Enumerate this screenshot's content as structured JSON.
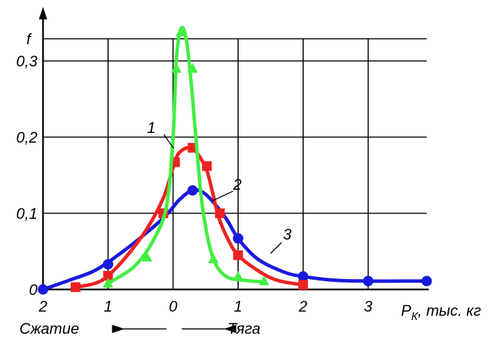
{
  "chart_data": {
    "type": "line",
    "ylabel": "f",
    "xlabel": "P",
    "xlabel_sub": "К",
    "xlabel_units": ", тыс. кг",
    "direction_left": "Сжатие",
    "direction_right": "Тяга",
    "xlim": [
      -2,
      3.9
    ],
    "ylim": [
      0,
      0.36
    ],
    "grid": true,
    "x_ticks": [
      {
        "value": -2,
        "label": "2"
      },
      {
        "value": -1,
        "label": "1"
      },
      {
        "value": 0,
        "label": "0"
      },
      {
        "value": 1,
        "label": "1"
      },
      {
        "value": 2,
        "label": "2"
      },
      {
        "value": 3,
        "label": "3"
      }
    ],
    "y_ticks": [
      {
        "value": 0,
        "label": "0"
      },
      {
        "value": 0.1,
        "label": "0,1"
      },
      {
        "value": 0.2,
        "label": "0,2"
      },
      {
        "value": 0.3,
        "label": "0,3"
      }
    ],
    "series": [
      {
        "name": "1",
        "color": "#44ee44",
        "marker": "triangle",
        "curve": [
          [
            -1.0,
            0.008
          ],
          [
            -0.6,
            0.03
          ],
          [
            -0.3,
            0.065
          ],
          [
            -0.1,
            0.11
          ],
          [
            0.0,
            0.2
          ],
          [
            0.05,
            0.3
          ],
          [
            0.12,
            0.342
          ],
          [
            0.2,
            0.33
          ],
          [
            0.28,
            0.27
          ],
          [
            0.35,
            0.2
          ],
          [
            0.45,
            0.11
          ],
          [
            0.6,
            0.045
          ],
          [
            0.8,
            0.018
          ],
          [
            1.1,
            0.012
          ],
          [
            1.4,
            0.01
          ]
        ],
        "markers": [
          [
            -1.0,
            0.008
          ],
          [
            -0.4,
            0.042
          ],
          [
            0.05,
            0.29
          ],
          [
            0.12,
            0.338
          ],
          [
            0.3,
            0.29
          ],
          [
            0.62,
            0.04
          ],
          [
            1.0,
            0.017
          ],
          [
            1.4,
            0.011
          ]
        ]
      },
      {
        "name": "2",
        "color": "#ee2222",
        "marker": "square",
        "curve": [
          [
            -1.5,
            0.003
          ],
          [
            -1.2,
            0.008
          ],
          [
            -1.0,
            0.018
          ],
          [
            -0.7,
            0.045
          ],
          [
            -0.4,
            0.08
          ],
          [
            -0.15,
            0.12
          ],
          [
            0.0,
            0.16
          ],
          [
            0.1,
            0.18
          ],
          [
            0.3,
            0.185
          ],
          [
            0.5,
            0.16
          ],
          [
            0.6,
            0.13
          ],
          [
            0.7,
            0.095
          ],
          [
            0.85,
            0.065
          ],
          [
            1.0,
            0.045
          ],
          [
            1.3,
            0.025
          ],
          [
            1.6,
            0.012
          ],
          [
            2.0,
            0.006
          ]
        ],
        "markers": [
          [
            -1.5,
            0.003
          ],
          [
            -1.0,
            0.018
          ],
          [
            -0.15,
            0.1
          ],
          [
            0.03,
            0.167
          ],
          [
            0.3,
            0.186
          ],
          [
            0.52,
            0.162
          ],
          [
            0.72,
            0.1
          ],
          [
            1.0,
            0.045
          ],
          [
            2.0,
            0.006
          ]
        ]
      },
      {
        "name": "3",
        "color": "#1a1adc",
        "marker": "circle",
        "curve": [
          [
            -2.0,
            0.0
          ],
          [
            -1.6,
            0.012
          ],
          [
            -1.2,
            0.025
          ],
          [
            -0.8,
            0.048
          ],
          [
            -0.4,
            0.075
          ],
          [
            -0.1,
            0.098
          ],
          [
            0.1,
            0.118
          ],
          [
            0.3,
            0.13
          ],
          [
            0.5,
            0.125
          ],
          [
            0.8,
            0.095
          ],
          [
            1.0,
            0.067
          ],
          [
            1.3,
            0.04
          ],
          [
            1.7,
            0.023
          ],
          [
            2.0,
            0.017
          ],
          [
            2.5,
            0.012
          ],
          [
            3.0,
            0.011
          ],
          [
            3.5,
            0.011
          ],
          [
            3.9,
            0.011
          ]
        ],
        "markers": [
          [
            -2.0,
            0.0
          ],
          [
            -1.0,
            0.033
          ],
          [
            0.3,
            0.13
          ],
          [
            1.0,
            0.067
          ],
          [
            2.0,
            0.017
          ],
          [
            3.0,
            0.011
          ],
          [
            3.9,
            0.011
          ]
        ]
      }
    ]
  }
}
